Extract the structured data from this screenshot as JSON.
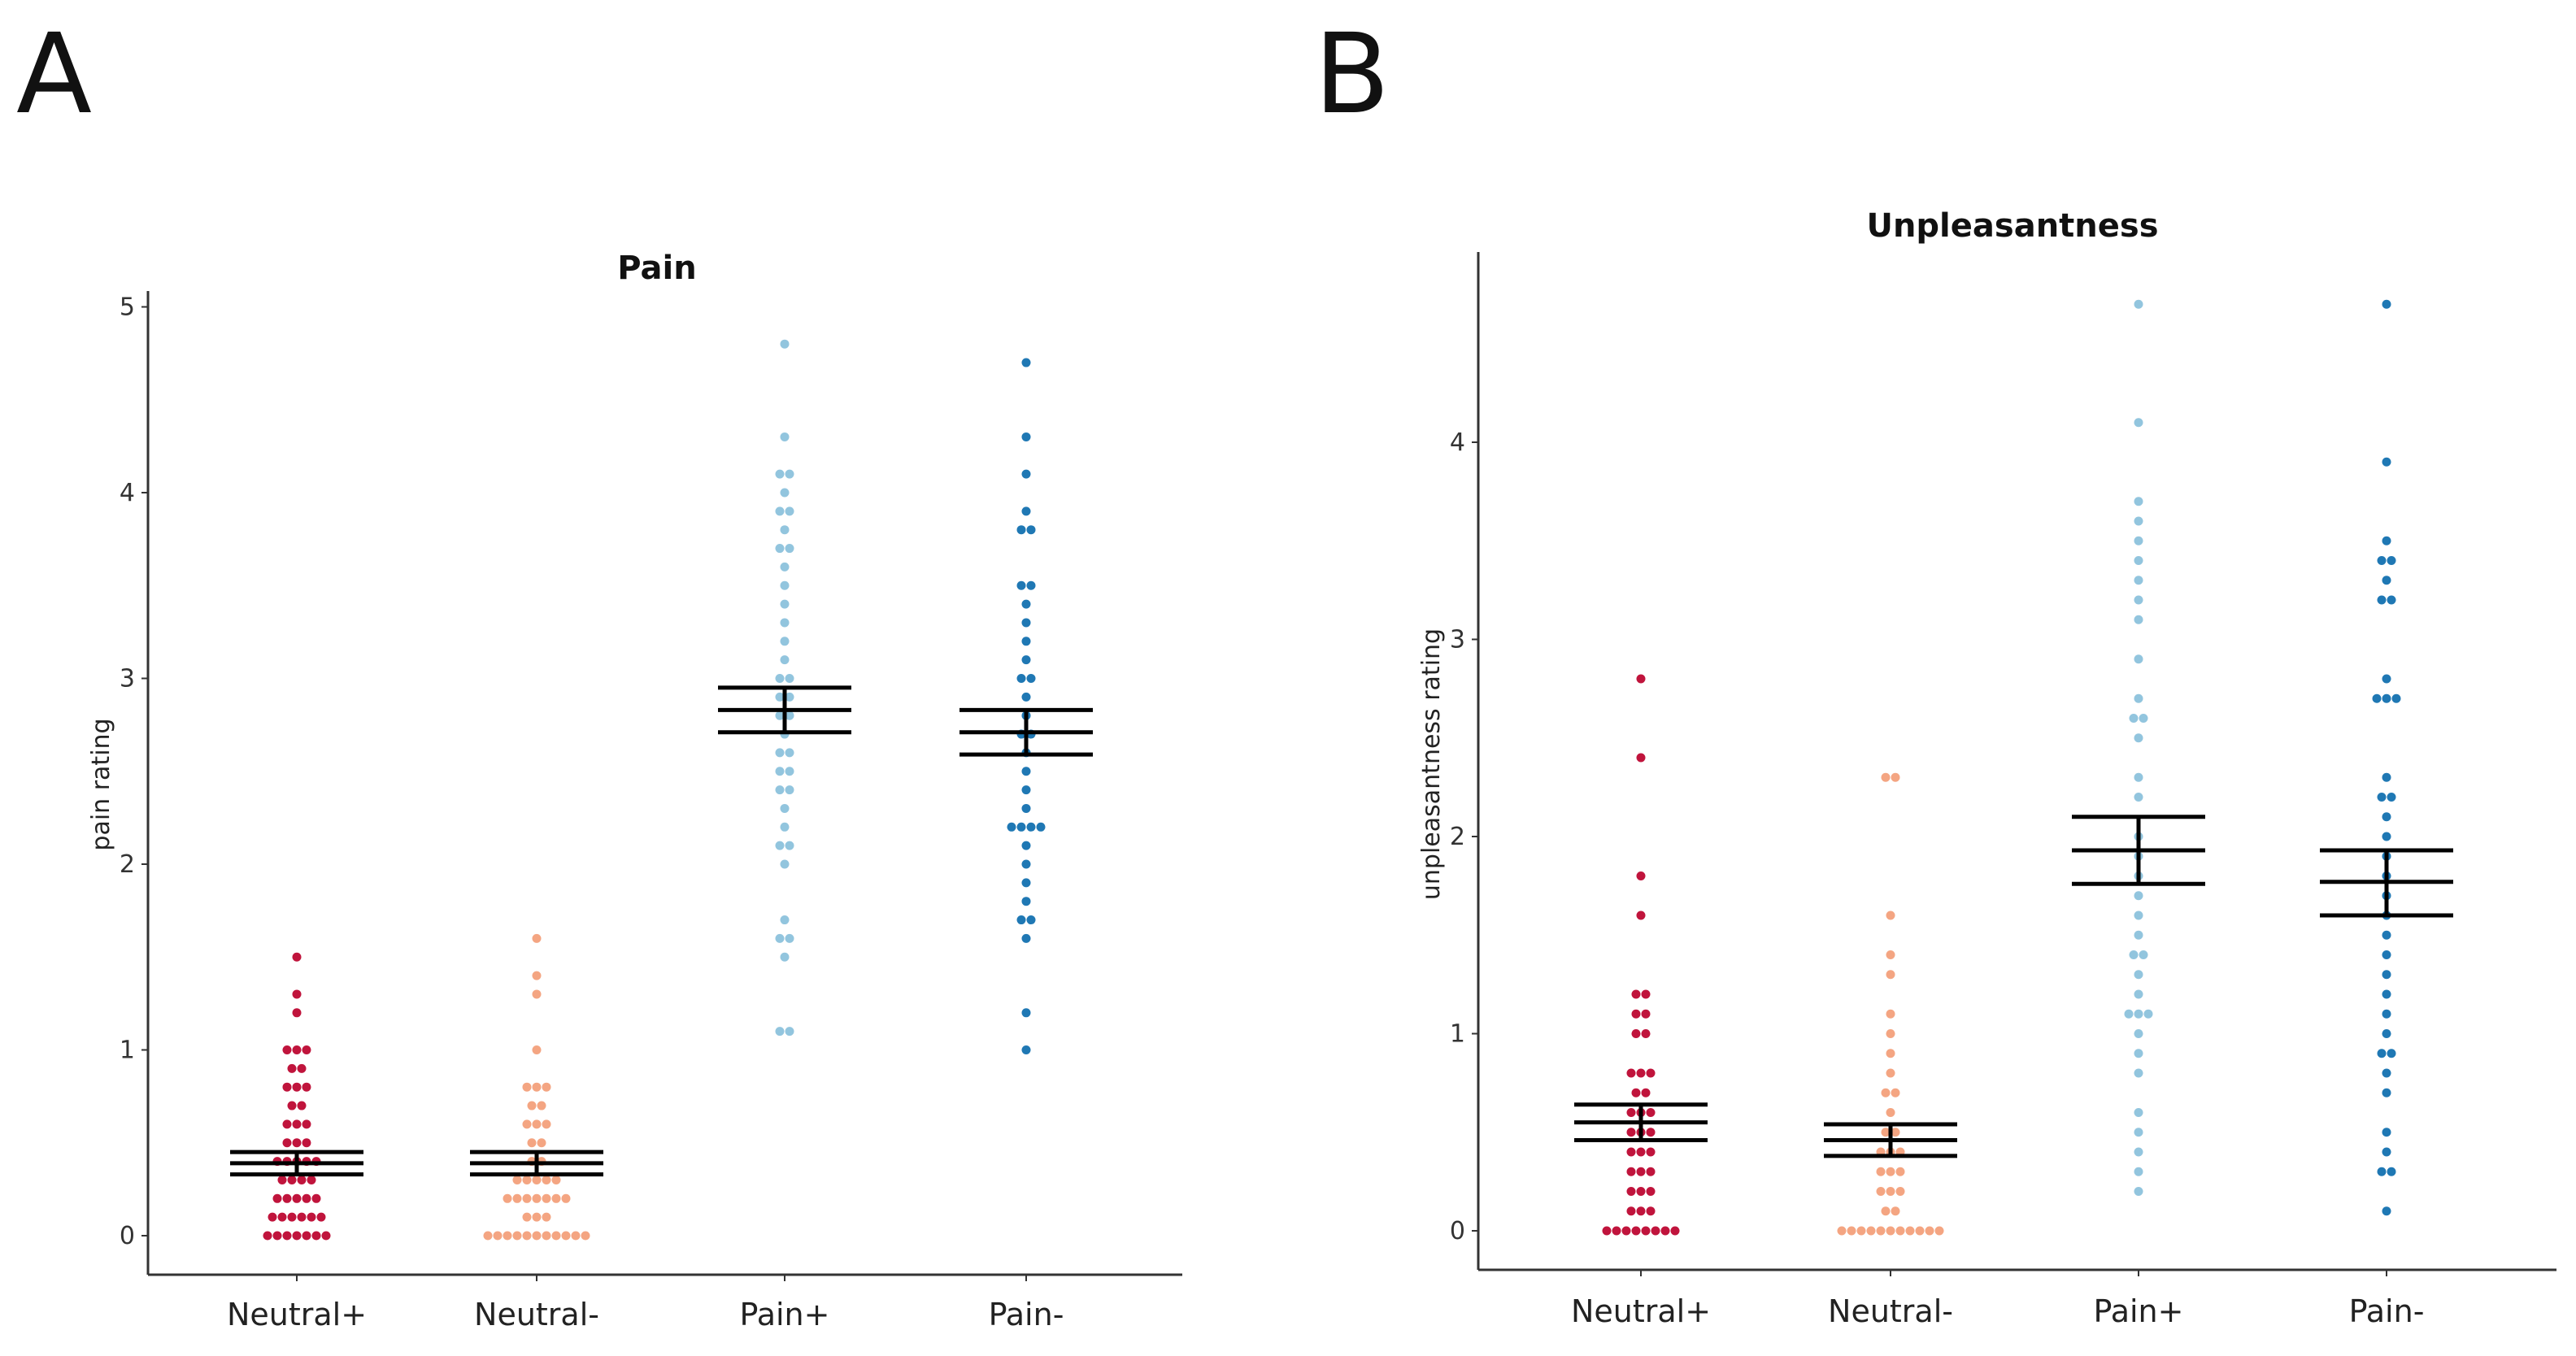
{
  "colors": {
    "Neutral+": "#c0143c",
    "Neutral-": "#f4a582",
    "Pain+": "#92c5de",
    "Pain-": "#1f78b4"
  },
  "chart_data": [
    {
      "panel_letter": "A",
      "type": "scatter",
      "subtype": "dot-strip with mean and SEM",
      "title": "Pain",
      "xlabel": "",
      "ylabel": "pain rating",
      "ylim": [
        -0.22,
        5.05
      ],
      "yticks": [
        "0",
        "1",
        "2",
        "3",
        "4",
        "5"
      ],
      "categories": [
        "Neutral+",
        "Neutral-",
        "Pain+",
        "Pain-"
      ],
      "series": [
        {
          "name": "Neutral+",
          "mean": 0.39,
          "se_upper": 0.45,
          "se_lower": 0.33,
          "values": [
            1.5,
            1.3,
            1.2,
            1.0,
            1.0,
            1.0,
            0.9,
            0.9,
            0.8,
            0.8,
            0.8,
            0.7,
            0.7,
            0.6,
            0.6,
            0.6,
            0.5,
            0.5,
            0.5,
            0.4,
            0.4,
            0.4,
            0.4,
            0.4,
            0.3,
            0.3,
            0.3,
            0.3,
            0.2,
            0.2,
            0.2,
            0.2,
            0.2,
            0.1,
            0.1,
            0.1,
            0.1,
            0.1,
            0.1,
            0.0,
            0.0,
            0.0,
            0.0,
            0.0,
            0.0,
            0.0
          ]
        },
        {
          "name": "Neutral-",
          "mean": 0.39,
          "se_upper": 0.45,
          "se_lower": 0.33,
          "values": [
            1.6,
            1.4,
            1.3,
            1.0,
            0.8,
            0.8,
            0.8,
            0.7,
            0.7,
            0.6,
            0.6,
            0.6,
            0.5,
            0.5,
            0.4,
            0.4,
            0.3,
            0.3,
            0.3,
            0.3,
            0.3,
            0.2,
            0.2,
            0.2,
            0.2,
            0.2,
            0.2,
            0.2,
            0.1,
            0.1,
            0.1,
            0.0,
            0.0,
            0.0,
            0.0,
            0.0,
            0.0,
            0.0,
            0.0,
            0.0,
            0.0,
            0.0
          ]
        },
        {
          "name": "Pain+",
          "mean": 2.83,
          "se_upper": 2.95,
          "se_lower": 2.71,
          "values": [
            4.8,
            4.3,
            4.1,
            4.1,
            4.0,
            3.9,
            3.9,
            3.8,
            3.7,
            3.7,
            3.6,
            3.5,
            3.4,
            3.3,
            3.2,
            3.1,
            3.0,
            3.0,
            2.9,
            2.9,
            2.8,
            2.8,
            2.7,
            2.6,
            2.6,
            2.5,
            2.5,
            2.4,
            2.4,
            2.3,
            2.2,
            2.1,
            2.1,
            2.0,
            1.7,
            1.6,
            1.6,
            1.5,
            1.1,
            1.1
          ]
        },
        {
          "name": "Pain-",
          "mean": 2.71,
          "se_upper": 2.83,
          "se_lower": 2.59,
          "values": [
            4.7,
            4.3,
            4.1,
            3.9,
            3.8,
            3.8,
            3.5,
            3.5,
            3.4,
            3.3,
            3.2,
            3.1,
            3.0,
            3.0,
            2.9,
            2.8,
            2.7,
            2.7,
            2.6,
            2.5,
            2.4,
            2.3,
            2.2,
            2.2,
            2.2,
            2.2,
            2.1,
            2.0,
            1.9,
            1.8,
            1.7,
            1.7,
            1.6,
            1.2,
            1.0
          ]
        }
      ]
    },
    {
      "panel_letter": "B",
      "type": "scatter",
      "subtype": "dot-strip with mean and SEM",
      "title": "Unpleasantness",
      "xlabel": "",
      "ylabel": "unpleasantness rating",
      "ylim": [
        -0.22,
        4.9
      ],
      "yticks": [
        "0",
        "1",
        "2",
        "3",
        "4"
      ],
      "categories": [
        "Neutral+",
        "Neutral-",
        "Pain+",
        "Pain-"
      ],
      "series": [
        {
          "name": "Neutral+",
          "mean": 0.55,
          "se_upper": 0.64,
          "se_lower": 0.46,
          "values": [
            2.8,
            2.4,
            1.8,
            1.6,
            1.2,
            1.2,
            1.1,
            1.1,
            1.0,
            1.0,
            0.8,
            0.8,
            0.8,
            0.7,
            0.7,
            0.6,
            0.6,
            0.6,
            0.5,
            0.5,
            0.5,
            0.4,
            0.4,
            0.4,
            0.3,
            0.3,
            0.3,
            0.2,
            0.2,
            0.2,
            0.1,
            0.1,
            0.1,
            0.0,
            0.0,
            0.0,
            0.0,
            0.0,
            0.0,
            0.0,
            0.0
          ]
        },
        {
          "name": "Neutral-",
          "mean": 0.46,
          "se_upper": 0.54,
          "se_lower": 0.38,
          "values": [
            2.3,
            2.3,
            1.6,
            1.4,
            1.3,
            1.1,
            1.0,
            0.9,
            0.8,
            0.7,
            0.7,
            0.6,
            0.5,
            0.5,
            0.4,
            0.4,
            0.4,
            0.3,
            0.3,
            0.3,
            0.2,
            0.2,
            0.2,
            0.1,
            0.1,
            0.0,
            0.0,
            0.0,
            0.0,
            0.0,
            0.0,
            0.0,
            0.0,
            0.0,
            0.0,
            0.0
          ]
        },
        {
          "name": "Pain+",
          "mean": 1.93,
          "se_upper": 2.1,
          "se_lower": 1.76,
          "values": [
            4.7,
            4.1,
            3.7,
            3.6,
            3.5,
            3.4,
            3.3,
            3.2,
            3.1,
            2.9,
            2.7,
            2.6,
            2.6,
            2.5,
            2.3,
            2.2,
            2.0,
            1.9,
            1.8,
            1.7,
            1.6,
            1.5,
            1.4,
            1.4,
            1.3,
            1.2,
            1.1,
            1.1,
            1.1,
            1.0,
            0.9,
            0.8,
            0.6,
            0.5,
            0.4,
            0.3,
            0.2
          ]
        },
        {
          "name": "Pain-",
          "mean": 1.77,
          "se_upper": 1.93,
          "se_lower": 1.6,
          "values": [
            4.7,
            3.9,
            3.5,
            3.4,
            3.4,
            3.3,
            3.2,
            3.2,
            2.8,
            2.7,
            2.7,
            2.7,
            2.3,
            2.2,
            2.2,
            2.1,
            2.0,
            1.9,
            1.8,
            1.7,
            1.6,
            1.5,
            1.4,
            1.3,
            1.2,
            1.1,
            1.0,
            0.9,
            0.9,
            0.8,
            0.7,
            0.5,
            0.4,
            0.3,
            0.3,
            0.1
          ]
        }
      ]
    }
  ]
}
